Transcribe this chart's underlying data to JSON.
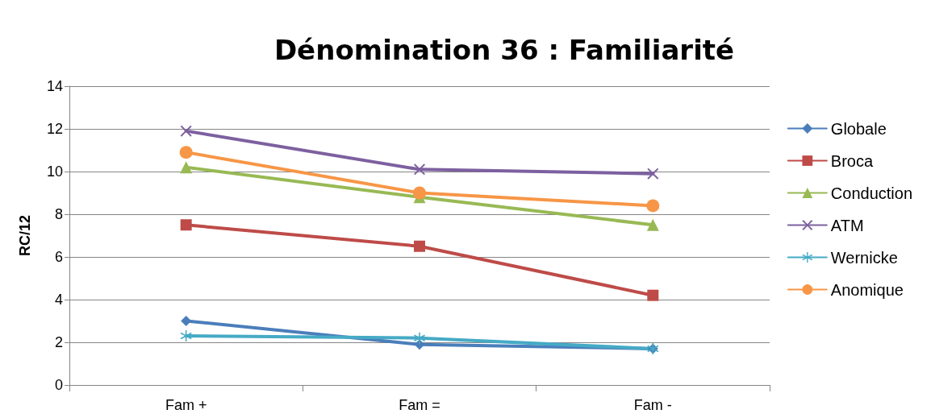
{
  "chart_data": {
    "type": "line",
    "title": "Dénomination 36 : Familiarité",
    "ylabel": "RC/12",
    "categories": [
      "Fam +",
      "Fam =",
      "Fam -"
    ],
    "series": [
      {
        "name": "Globale",
        "color": "#4a7ebb",
        "marker": "diamond",
        "values": [
          3.0,
          1.9,
          1.7
        ]
      },
      {
        "name": "Broca",
        "color": "#be4b48",
        "marker": "square",
        "values": [
          7.5,
          6.5,
          4.2
        ]
      },
      {
        "name": "Conduction",
        "color": "#98b954",
        "marker": "triangle",
        "values": [
          10.2,
          8.8,
          7.5
        ]
      },
      {
        "name": "ATM",
        "color": "#7d60a0",
        "marker": "cross",
        "values": [
          11.9,
          10.1,
          9.9
        ]
      },
      {
        "name": "Wernicke",
        "color": "#46aac5",
        "marker": "star",
        "values": [
          2.3,
          2.2,
          1.7
        ]
      },
      {
        "name": "Anomique",
        "color": "#f79646",
        "marker": "circle",
        "values": [
          10.9,
          9.0,
          8.4
        ]
      }
    ],
    "ylim": [
      0,
      14
    ],
    "yticks": [
      0,
      2,
      4,
      6,
      8,
      10,
      12,
      14
    ],
    "grid": "y",
    "legend": "right",
    "line_style": "solid"
  }
}
